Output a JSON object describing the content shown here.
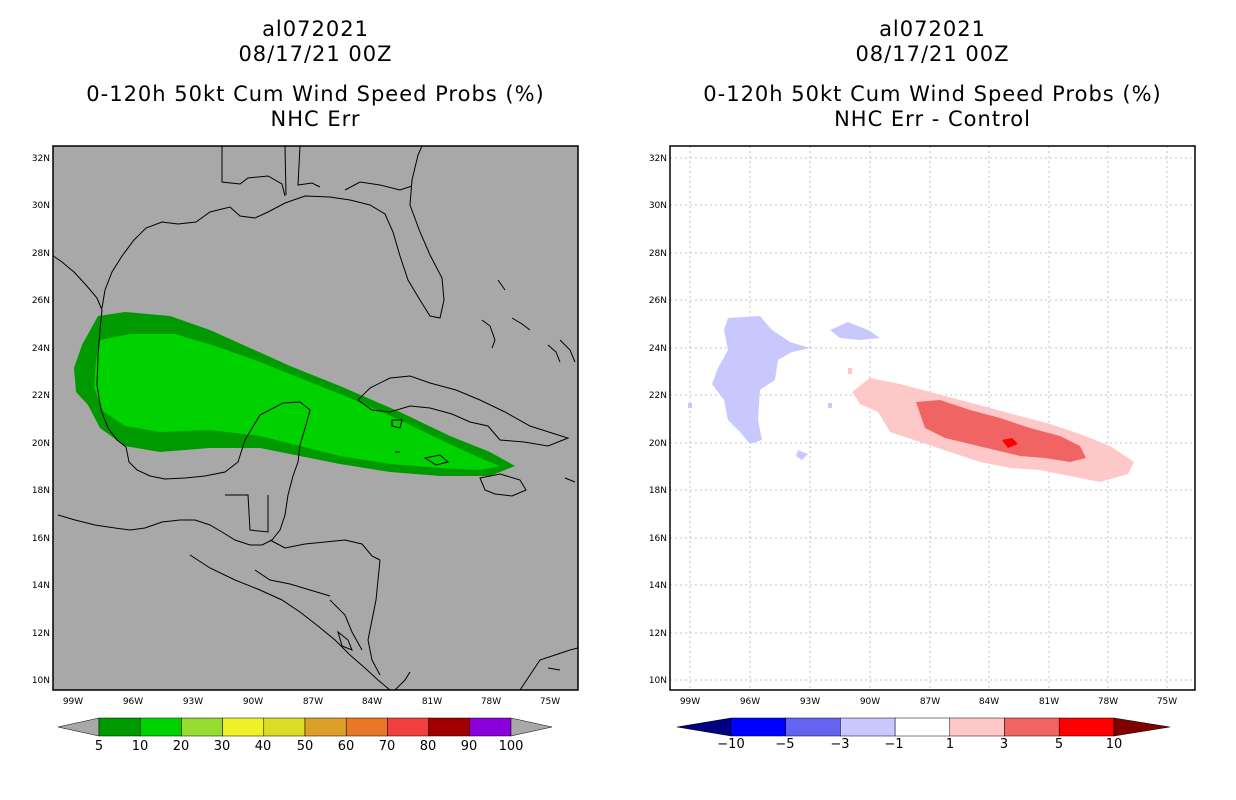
{
  "left_panel": {
    "storm_id": "al072021",
    "datetime": "08/17/21 00Z",
    "product": "0-120h 50kt Cum Wind Speed Probs (%)",
    "subtitle": "NHC Err",
    "colorbar": {
      "labels": [
        "5",
        "10",
        "20",
        "30",
        "40",
        "50",
        "60",
        "70",
        "80",
        "90",
        "100"
      ],
      "colors": [
        "#009a00",
        "#00d200",
        "#96dc32",
        "#f0f028",
        "#dcdc28",
        "#dca028",
        "#e87828",
        "#f04040",
        "#a00000",
        "#8c00dc"
      ],
      "end_color": "#a8a8a8"
    }
  },
  "right_panel": {
    "storm_id": "al072021",
    "datetime": "08/17/21 00Z",
    "product": "0-120h 50kt Cum Wind Speed Probs (%)",
    "subtitle": "NHC Err - Control",
    "colorbar": {
      "labels": [
        "−10",
        "−5",
        "−3",
        "−1",
        "1",
        "3",
        "5",
        "10"
      ],
      "colors": [
        "#0000ff",
        "#6464f0",
        "#c8c8ff",
        "#ffffff",
        "#ffc8c8",
        "#f06464",
        "#ff0000"
      ],
      "low_end_color": "#000080",
      "high_end_color": "#800000"
    }
  },
  "axes": {
    "lat_labels": [
      "32N",
      "30N",
      "28N",
      "26N",
      "24N",
      "22N",
      "20N",
      "18N",
      "16N",
      "14N",
      "12N",
      "10N"
    ],
    "lon_labels": [
      "99W",
      "96W",
      "93W",
      "90W",
      "87W",
      "84W",
      "81W",
      "78W",
      "75W"
    ],
    "lat_range": [
      9.7,
      32.5
    ],
    "lon_range": [
      -100.0,
      -73.8
    ]
  }
}
